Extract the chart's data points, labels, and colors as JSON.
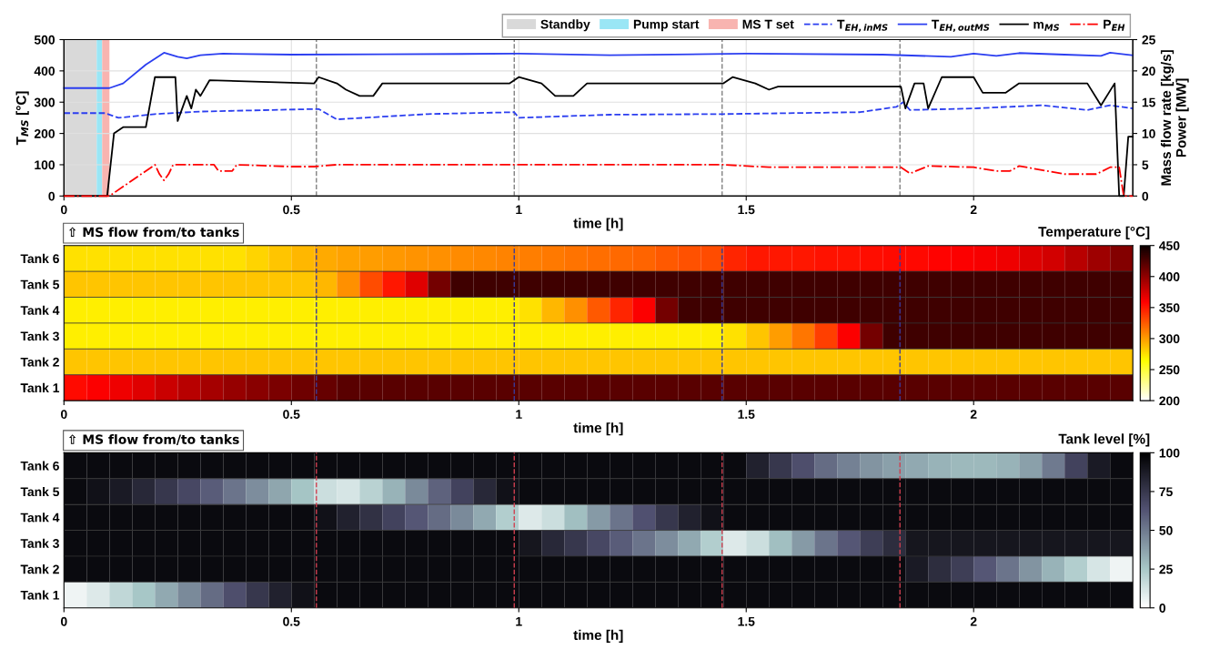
{
  "chart_data": [
    {
      "type": "line",
      "xlabel": "time [h]",
      "ylabel": "T$_{MS}$ [°C]",
      "y2label": "Mass flow rate [kg/s]\nPower [MW]",
      "xlim": [
        0,
        2.35
      ],
      "xticks": [
        0,
        0.5,
        1,
        1.5,
        2
      ],
      "ylim": [
        0,
        500
      ],
      "yticks": [
        0,
        100,
        200,
        300,
        400,
        500
      ],
      "y2lim": [
        0,
        25
      ],
      "y2ticks": [
        0,
        5,
        10,
        15,
        20,
        25
      ],
      "grid": true,
      "legend": "top right",
      "bands": [
        {
          "axis": "x",
          "from": 0,
          "to": 0.072,
          "label": "Standby",
          "color": "#d9d9d9"
        },
        {
          "axis": "x",
          "from": 0.072,
          "to": 0.084,
          "label": "Pump start",
          "color": "#9ae6f5"
        },
        {
          "axis": "x",
          "from": 0.084,
          "to": 0.1,
          "label": "MS T set",
          "color": "#f8b4b0"
        }
      ],
      "ref_lines": [
        {
          "axis": "x",
          "value": 0.555,
          "color": "#808080",
          "line_style": "dashed"
        },
        {
          "axis": "x",
          "value": 0.99,
          "color": "#808080",
          "line_style": "dashed"
        },
        {
          "axis": "x",
          "value": 1.447,
          "color": "#808080",
          "line_style": "dashed"
        },
        {
          "axis": "x",
          "value": 1.838,
          "color": "#808080",
          "line_style": "dashed"
        }
      ],
      "series": [
        {
          "name": "T$_{EH,inMS}$",
          "color": "#2b3ef0",
          "line_style": "dashed",
          "x": [
            0,
            0.09,
            0.12,
            0.2,
            0.3,
            0.55,
            0.56,
            0.6,
            0.8,
            0.99,
            1.0,
            1.2,
            1.45,
            1.75,
            1.83,
            1.845,
            1.86,
            2.0,
            2.15,
            2.25,
            2.3,
            2.35
          ],
          "values": [
            265,
            265,
            250,
            262,
            270,
            278,
            278,
            245,
            262,
            268,
            250,
            260,
            262,
            268,
            285,
            300,
            275,
            280,
            290,
            275,
            290,
            280
          ]
        },
        {
          "name": "T$_{EH,outMS}$",
          "color": "#2b3ef0",
          "line_style": "solid",
          "x": [
            0,
            0.1,
            0.13,
            0.18,
            0.22,
            0.25,
            0.27,
            0.3,
            0.35,
            0.5,
            0.7,
            1.0,
            1.2,
            1.5,
            1.8,
            1.95,
            2.0,
            2.05,
            2.1,
            2.2,
            2.28,
            2.3,
            2.35
          ],
          "values": [
            345,
            345,
            360,
            420,
            458,
            445,
            440,
            450,
            455,
            452,
            453,
            455,
            450,
            455,
            452,
            445,
            455,
            448,
            457,
            452,
            448,
            458,
            450
          ]
        },
        {
          "name": "m$_{MS}$",
          "color": "#000000",
          "line_style": "solid",
          "axis": "y2",
          "x": [
            0,
            0.095,
            0.11,
            0.13,
            0.18,
            0.2,
            0.245,
            0.25,
            0.27,
            0.28,
            0.29,
            0.3,
            0.32,
            0.55,
            0.56,
            0.6,
            0.62,
            0.65,
            0.68,
            0.7,
            0.98,
            1.0,
            1.05,
            1.08,
            1.12,
            1.15,
            1.45,
            1.47,
            1.52,
            1.55,
            1.57,
            1.84,
            1.85,
            1.87,
            1.89,
            1.9,
            1.93,
            2.0,
            2.02,
            2.07,
            2.1,
            2.25,
            2.28,
            2.31,
            2.32,
            2.33,
            2.34,
            2.35
          ],
          "values": [
            0,
            0,
            10,
            11,
            11,
            19,
            19,
            12,
            16,
            14,
            17,
            16,
            18.5,
            18,
            19,
            18,
            17,
            16,
            16,
            18,
            18,
            19,
            18,
            16,
            16,
            18,
            18,
            19,
            18,
            17,
            17.5,
            17.5,
            14,
            18,
            18,
            14,
            19,
            19,
            16.5,
            16.5,
            18,
            18,
            14.5,
            18,
            0,
            0,
            9.5,
            9.5
          ]
        },
        {
          "name": "P$_{EH}$",
          "color": "#ff0000",
          "line_style": "dashdot",
          "axis": "y2",
          "x": [
            0,
            0.1,
            0.2,
            0.21,
            0.22,
            0.23,
            0.24,
            0.33,
            0.34,
            0.37,
            0.38,
            0.5,
            0.55,
            0.6,
            1.45,
            1.55,
            1.84,
            1.86,
            1.9,
            2.0,
            2.05,
            2.08,
            2.1,
            2.2,
            2.27,
            2.3,
            2.32,
            2.33,
            2.35
          ],
          "values": [
            0,
            0,
            5,
            3.5,
            2.5,
            3.5,
            5,
            5,
            4,
            4,
            5,
            4.7,
            4.7,
            5,
            5,
            4.6,
            4.6,
            3.6,
            4.8,
            4.6,
            4,
            4,
            4.8,
            3.5,
            3.5,
            4.6,
            4.6,
            0,
            0
          ]
        }
      ]
    },
    {
      "type": "heatmap",
      "xlabel": "time [h]",
      "clabel": "Temperature [°C]",
      "annotations": [
        "⇧ MS flow from/to tanks"
      ],
      "xlim": [
        0,
        2.35
      ],
      "xticks": [
        0,
        0.5,
        1,
        1.5,
        2
      ],
      "clim": [
        200,
        450
      ],
      "cticks": [
        200,
        250,
        300,
        350,
        400,
        450
      ],
      "ref_lines": [
        {
          "axis": "x",
          "value": 0.555,
          "color": "#3a3a9a",
          "line_style": "dashed"
        },
        {
          "axis": "x",
          "value": 0.99,
          "color": "#3a3a9a",
          "line_style": "dashed"
        },
        {
          "axis": "x",
          "value": 1.447,
          "color": "#3a3a9a",
          "line_style": "dashed"
        },
        {
          "axis": "x",
          "value": 1.838,
          "color": "#3a3a9a",
          "line_style": "dashed"
        }
      ],
      "x": [
        0.025,
        0.075,
        0.125,
        0.175,
        0.225,
        0.275,
        0.325,
        0.375,
        0.425,
        0.475,
        0.525,
        0.575,
        0.625,
        0.675,
        0.725,
        0.775,
        0.825,
        0.875,
        0.925,
        0.975,
        1.025,
        1.075,
        1.125,
        1.175,
        1.225,
        1.275,
        1.325,
        1.375,
        1.425,
        1.475,
        1.525,
        1.575,
        1.625,
        1.675,
        1.725,
        1.775,
        1.825,
        1.875,
        1.925,
        1.975,
        2.025,
        2.075,
        2.125,
        2.175,
        2.225,
        2.275,
        2.325
      ],
      "y_categories": [
        "Tank 6",
        "Tank 5",
        "Tank 4",
        "Tank 3",
        "Tank 2",
        "Tank 1"
      ],
      "cells": [
        [
          275,
          275,
          275,
          275,
          275,
          275,
          275,
          275,
          280,
          285,
          290,
          295,
          298,
          300,
          302,
          304,
          305,
          307,
          308,
          310,
          312,
          314,
          316,
          318,
          320,
          322,
          325,
          328,
          330,
          345,
          350,
          350,
          350,
          352,
          352,
          354,
          355,
          356,
          358,
          360,
          362,
          365,
          370,
          375,
          385,
          395,
          405
        ],
        [
          285,
          285,
          285,
          285,
          285,
          285,
          285,
          285,
          285,
          285,
          285,
          290,
          305,
          330,
          350,
          370,
          410,
          430,
          430,
          430,
          430,
          430,
          430,
          430,
          430,
          430,
          430,
          430,
          430,
          430,
          430,
          430,
          430,
          430,
          430,
          430,
          430,
          430,
          430,
          430,
          430,
          430,
          430,
          430,
          430,
          430,
          430
        ],
        [
          270,
          270,
          270,
          270,
          270,
          270,
          270,
          270,
          270,
          270,
          270,
          270,
          270,
          270,
          270,
          270,
          270,
          270,
          270,
          270,
          275,
          290,
          305,
          325,
          345,
          360,
          410,
          430,
          430,
          430,
          430,
          430,
          430,
          430,
          430,
          430,
          430,
          430,
          430,
          430,
          430,
          430,
          430,
          430,
          430,
          430,
          430
        ],
        [
          270,
          270,
          270,
          270,
          270,
          270,
          270,
          270,
          270,
          270,
          270,
          270,
          270,
          270,
          270,
          270,
          270,
          270,
          270,
          270,
          270,
          270,
          270,
          270,
          270,
          270,
          270,
          270,
          270,
          275,
          285,
          300,
          315,
          335,
          360,
          410,
          430,
          430,
          430,
          430,
          430,
          430,
          430,
          430,
          430,
          430,
          430
        ],
        [
          285,
          285,
          285,
          285,
          285,
          285,
          285,
          285,
          285,
          285,
          285,
          285,
          285,
          285,
          285,
          285,
          285,
          285,
          285,
          285,
          285,
          285,
          285,
          285,
          285,
          285,
          285,
          285,
          285,
          285,
          285,
          285,
          285,
          285,
          285,
          285,
          285,
          285,
          285,
          285,
          285,
          285,
          285,
          285,
          285,
          285,
          285
        ],
        [
          355,
          360,
          365,
          370,
          378,
          385,
          392,
          398,
          403,
          408,
          412,
          415,
          420,
          420,
          420,
          420,
          420,
          420,
          420,
          420,
          420,
          420,
          420,
          420,
          420,
          420,
          420,
          420,
          420,
          420,
          420,
          420,
          420,
          420,
          420,
          420,
          420,
          420,
          420,
          420,
          420,
          420,
          420,
          420,
          420,
          420,
          420
        ]
      ]
    },
    {
      "type": "heatmap",
      "xlabel": "time [h]",
      "clabel": "Tank level [%]",
      "annotations": [
        "⇧ MS flow from/to tanks"
      ],
      "xlim": [
        0,
        2.35
      ],
      "xticks": [
        0,
        0.5,
        1,
        1.5,
        2
      ],
      "clim": [
        0,
        100
      ],
      "cticks": [
        0,
        25,
        50,
        75,
        100
      ],
      "ref_lines": [
        {
          "axis": "x",
          "value": 0.555,
          "color": "#d04050",
          "line_style": "dashed"
        },
        {
          "axis": "x",
          "value": 0.99,
          "color": "#d04050",
          "line_style": "dashed"
        },
        {
          "axis": "x",
          "value": 1.447,
          "color": "#d04050",
          "line_style": "dashed"
        },
        {
          "axis": "x",
          "value": 1.838,
          "color": "#d04050",
          "line_style": "dashed"
        }
      ],
      "x": [
        0.025,
        0.075,
        0.125,
        0.175,
        0.225,
        0.275,
        0.325,
        0.375,
        0.425,
        0.475,
        0.525,
        0.575,
        0.625,
        0.675,
        0.725,
        0.775,
        0.825,
        0.875,
        0.925,
        0.975,
        1.025,
        1.075,
        1.125,
        1.175,
        1.225,
        1.275,
        1.325,
        1.375,
        1.425,
        1.475,
        1.525,
        1.575,
        1.625,
        1.675,
        1.725,
        1.775,
        1.825,
        1.875,
        1.925,
        1.975,
        2.025,
        2.075,
        2.125,
        2.175,
        2.225,
        2.275,
        2.325
      ],
      "y_categories": [
        "Tank 6",
        "Tank 5",
        "Tank 4",
        "Tank 3",
        "Tank 2",
        "Tank 1"
      ],
      "cells": [
        [
          95,
          95,
          95,
          95,
          95,
          95,
          95,
          95,
          95,
          95,
          95,
          95,
          95,
          95,
          95,
          95,
          95,
          95,
          95,
          95,
          95,
          95,
          95,
          95,
          95,
          95,
          95,
          95,
          95,
          95,
          85,
          75,
          65,
          55,
          48,
          42,
          38,
          35,
          32,
          30,
          30,
          32,
          38,
          50,
          70,
          88,
          95
        ],
        [
          95,
          92,
          88,
          82,
          75,
          68,
          60,
          52,
          44,
          36,
          26,
          15,
          12,
          20,
          32,
          45,
          58,
          70,
          82,
          92,
          95,
          95,
          95,
          95,
          95,
          95,
          95,
          95,
          95,
          95,
          95,
          95,
          95,
          95,
          95,
          95,
          95,
          95,
          95,
          95,
          95,
          95,
          95,
          95,
          95,
          95,
          95
        ],
        [
          95,
          95,
          95,
          95,
          95,
          95,
          95,
          95,
          95,
          95,
          95,
          92,
          85,
          78,
          70,
          62,
          55,
          45,
          35,
          22,
          10,
          15,
          28,
          40,
          52,
          64,
          75,
          85,
          92,
          95,
          95,
          95,
          95,
          95,
          95,
          95,
          95,
          95,
          95,
          95,
          95,
          95,
          95,
          95,
          95,
          95,
          95
        ],
        [
          95,
          95,
          95,
          95,
          95,
          95,
          95,
          95,
          95,
          95,
          95,
          95,
          95,
          95,
          95,
          95,
          95,
          95,
          95,
          95,
          90,
          82,
          75,
          68,
          60,
          52,
          44,
          35,
          22,
          10,
          15,
          28,
          40,
          52,
          62,
          72,
          80,
          90,
          90,
          90,
          90,
          90,
          90,
          90,
          90,
          90,
          90
        ],
        [
          95,
          95,
          95,
          95,
          95,
          95,
          95,
          95,
          95,
          95,
          95,
          95,
          95,
          95,
          95,
          95,
          95,
          95,
          95,
          95,
          95,
          95,
          95,
          95,
          95,
          95,
          95,
          95,
          95,
          95,
          95,
          95,
          95,
          95,
          95,
          95,
          95,
          88,
          80,
          72,
          62,
          52,
          42,
          32,
          22,
          12,
          5
        ],
        [
          5,
          10,
          18,
          25,
          35,
          45,
          55,
          65,
          75,
          85,
          92,
          95,
          95,
          95,
          95,
          95,
          95,
          95,
          95,
          95,
          95,
          95,
          95,
          95,
          95,
          95,
          95,
          95,
          95,
          95,
          95,
          95,
          95,
          95,
          95,
          95,
          95,
          95,
          95,
          95,
          95,
          95,
          95,
          95,
          95,
          95,
          95
        ]
      ]
    }
  ]
}
